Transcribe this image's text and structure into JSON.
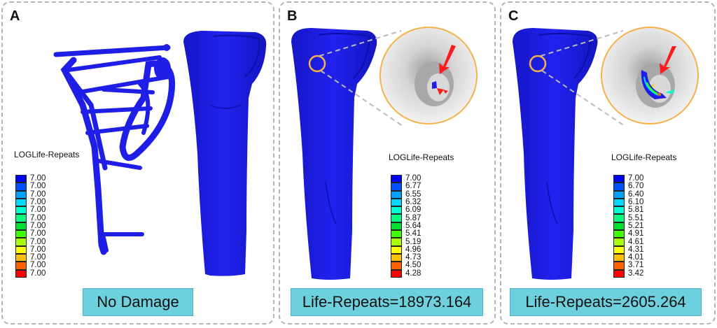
{
  "panels": [
    {
      "label": "A",
      "legend_title": "LOGLife-Repeats",
      "legend_values": [
        "7.00",
        "7.00",
        "7.00",
        "7.00",
        "7.00",
        "7.00",
        "7.00",
        "7.00",
        "7.00",
        "7.00",
        "7.00",
        "7.00",
        "7.00"
      ],
      "caption": "No Damage"
    },
    {
      "label": "B",
      "legend_title": "LOGLife-Repeats",
      "legend_values": [
        "7.00",
        "6.77",
        "6.55",
        "6.32",
        "6.09",
        "5.87",
        "5.64",
        "5.41",
        "5.19",
        "4.96",
        "4.73",
        "4.50",
        "4.28"
      ],
      "caption": "Life-Repeats=18973.164"
    },
    {
      "label": "C",
      "legend_title": "LOGLife-Repeats",
      "legend_values": [
        "7.00",
        "6.70",
        "6.40",
        "6.10",
        "5.81",
        "5.51",
        "5.21",
        "4.91",
        "4.61",
        "4.31",
        "4.01",
        "3.71",
        "3.42"
      ],
      "caption": "Life-Repeats=2605.264"
    }
  ],
  "colors": {
    "legend_swatches": [
      "#0000ff",
      "#0050ff",
      "#00a0ff",
      "#00d8ff",
      "#00ffd0",
      "#00ff80",
      "#00e030",
      "#40ff00",
      "#a8ff00",
      "#ffff00",
      "#ffc000",
      "#ff6000",
      "#ff0000"
    ],
    "bone": "#1a1ae0",
    "caption_bg": "#6fd0dd",
    "highlight_ring": "#f5b24a",
    "arrow": "#ff1a1a"
  }
}
